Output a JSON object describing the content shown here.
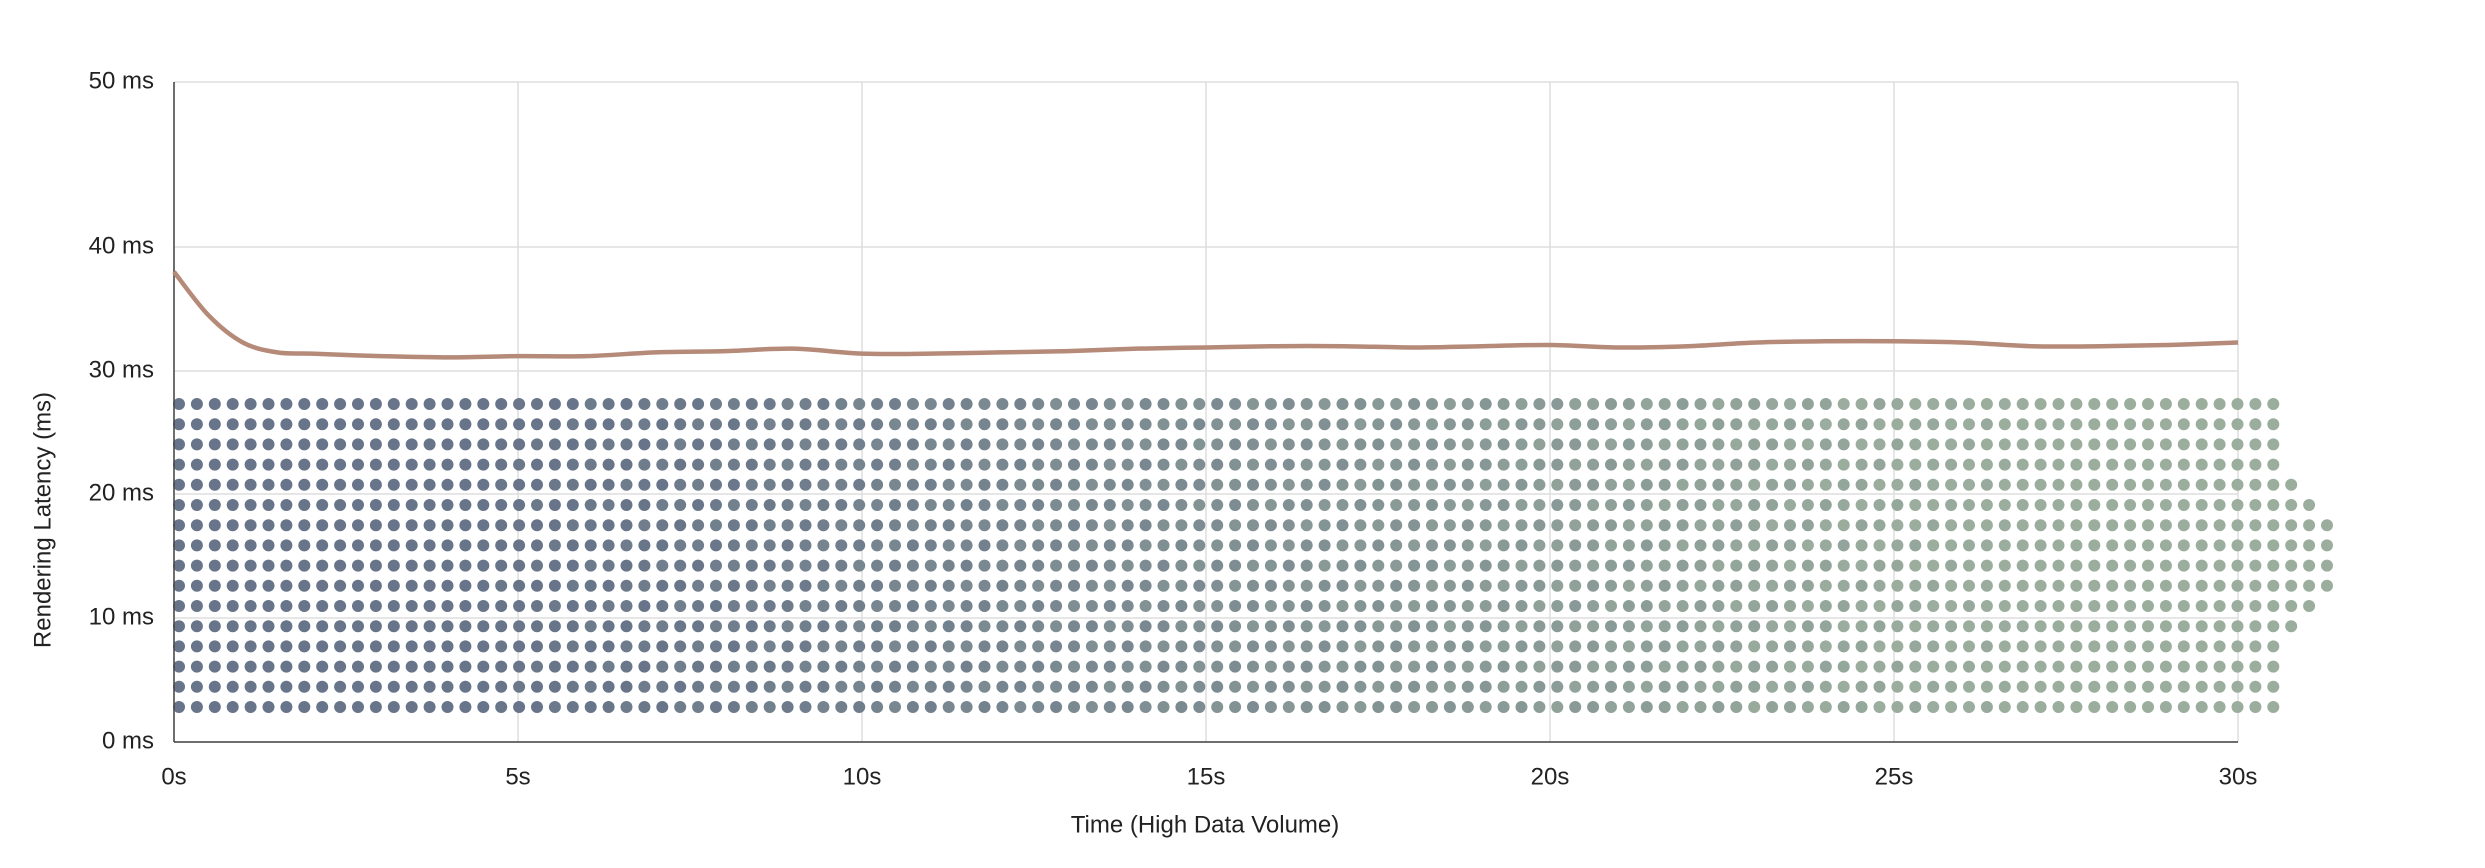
{
  "chart_data": {
    "type": "line",
    "x_label": "Time (High Data Volume)",
    "y_label": "Rendering Latency (ms)",
    "x": [
      0,
      0.5,
      1,
      1.5,
      2,
      3,
      4,
      5,
      6,
      7,
      8,
      9,
      10,
      11,
      12,
      13,
      14,
      15,
      16,
      17,
      18,
      19,
      20,
      21,
      22,
      23,
      24,
      25,
      26,
      27,
      28,
      29,
      30
    ],
    "series": [
      {
        "color": "#b58a78",
        "values": [
          38,
          34.5,
          32.3,
          31.5,
          31.4,
          31.2,
          31.1,
          31.2,
          31.2,
          31.5,
          31.6,
          31.8,
          31.4,
          31.4,
          31.5,
          31.6,
          31.8,
          31.9,
          32.0,
          32.0,
          31.9,
          32.0,
          32.1,
          31.9,
          32.0,
          32.3,
          32.4,
          32.4,
          32.3,
          32.0,
          32.0,
          32.1,
          32.3
        ]
      }
    ],
    "xlim": [
      0,
      30
    ],
    "xticks": [
      {
        "value": 0,
        "label": "0s"
      },
      {
        "value": 5,
        "label": "5s"
      },
      {
        "value": 10,
        "label": "10s"
      },
      {
        "value": 15,
        "label": "15s"
      },
      {
        "value": 20,
        "label": "20s"
      },
      {
        "value": 25,
        "label": "25s"
      },
      {
        "value": 30,
        "label": "30s"
      }
    ],
    "ylim": [
      0,
      50
    ],
    "yticks": [
      {
        "value": 0,
        "label": "0 ms"
      },
      {
        "value": 10,
        "label": "10 ms"
      },
      {
        "value": 20,
        "label": "20 ms"
      },
      {
        "value": 30,
        "label": "30 ms"
      },
      {
        "value": 40,
        "label": "40 ms"
      },
      {
        "value": 50,
        "label": "50 ms"
      }
    ],
    "grid": true
  }
}
